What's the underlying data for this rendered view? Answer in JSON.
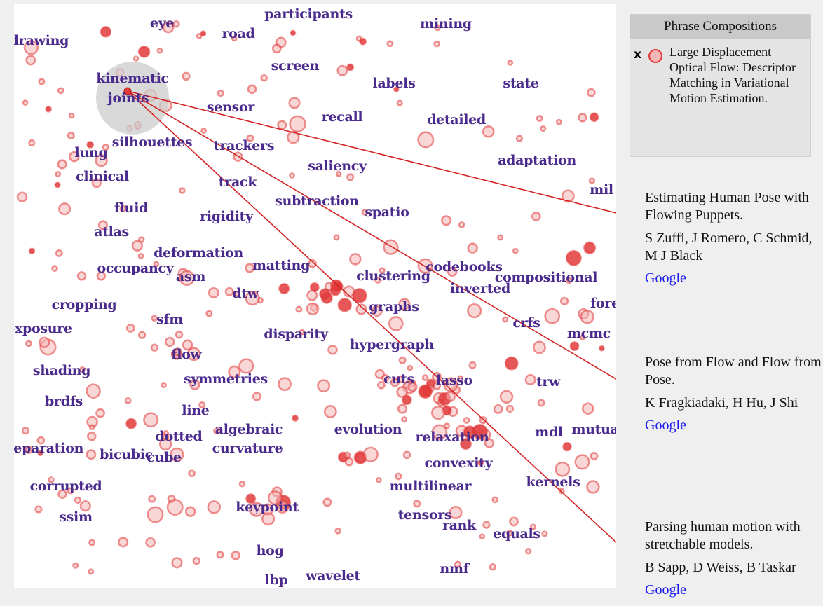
{
  "legend": {
    "header": "Phrase Compositions",
    "remove_icon": "x",
    "entry_title": "Large Displacement Optical Flow: Descriptor Matching in Variational Motion Estimation."
  },
  "papers": [
    {
      "title": "Estimating Human Pose with Flowing Puppets.",
      "authors": "S Zuffi, J Romero, C Schmid, M J Black",
      "link": "Google"
    },
    {
      "title": "Pose from Flow and Flow from Pose.",
      "authors": "K Fragkiadaki, H Hu, J Shi",
      "link": "Google"
    },
    {
      "title": "Parsing human motion with stretchable models.",
      "authors": "B Sapp, D Weiss, B Taskar",
      "link": "Google"
    }
  ],
  "colors": {
    "word": "#4a2a8c",
    "bubble": "#e23a3a",
    "link": "#1a1aee",
    "focus": "#cccccc"
  },
  "words": [
    "eye",
    "participants",
    "mining",
    "drawing",
    "road",
    "screen",
    "labels",
    "state",
    "kinematic",
    "joints",
    "sensor",
    "recall",
    "detailed",
    "silhouettes",
    "trackers",
    "lung",
    "saliency",
    "adaptation",
    "clinical",
    "track",
    "mil",
    "subtraction",
    "fluid",
    "rigidity",
    "spatio",
    "atlas",
    "deformation",
    "matting",
    "codebooks",
    "occupancy",
    "asm",
    "clustering",
    "compositional",
    "dtw",
    "inverted",
    "fore",
    "cropping",
    "graphs",
    "sfm",
    "crfs",
    "exposure",
    "disparity",
    "mcmc",
    "flow",
    "hypergraph",
    "shading",
    "symmetries",
    "cuts",
    "lasso",
    "trw",
    "brdfs",
    "line",
    "algebraic",
    "evolution",
    "dotted",
    "mdl",
    "mutua",
    "separation",
    "curvature",
    "relaxation",
    "bicubic",
    "cube",
    "convexity",
    "corrupted",
    "multilinear",
    "kernels",
    "keypoint",
    "ssim",
    "tensors",
    "rank",
    "equals",
    "hog",
    "nmf",
    "wavelet",
    "lbp"
  ]
}
